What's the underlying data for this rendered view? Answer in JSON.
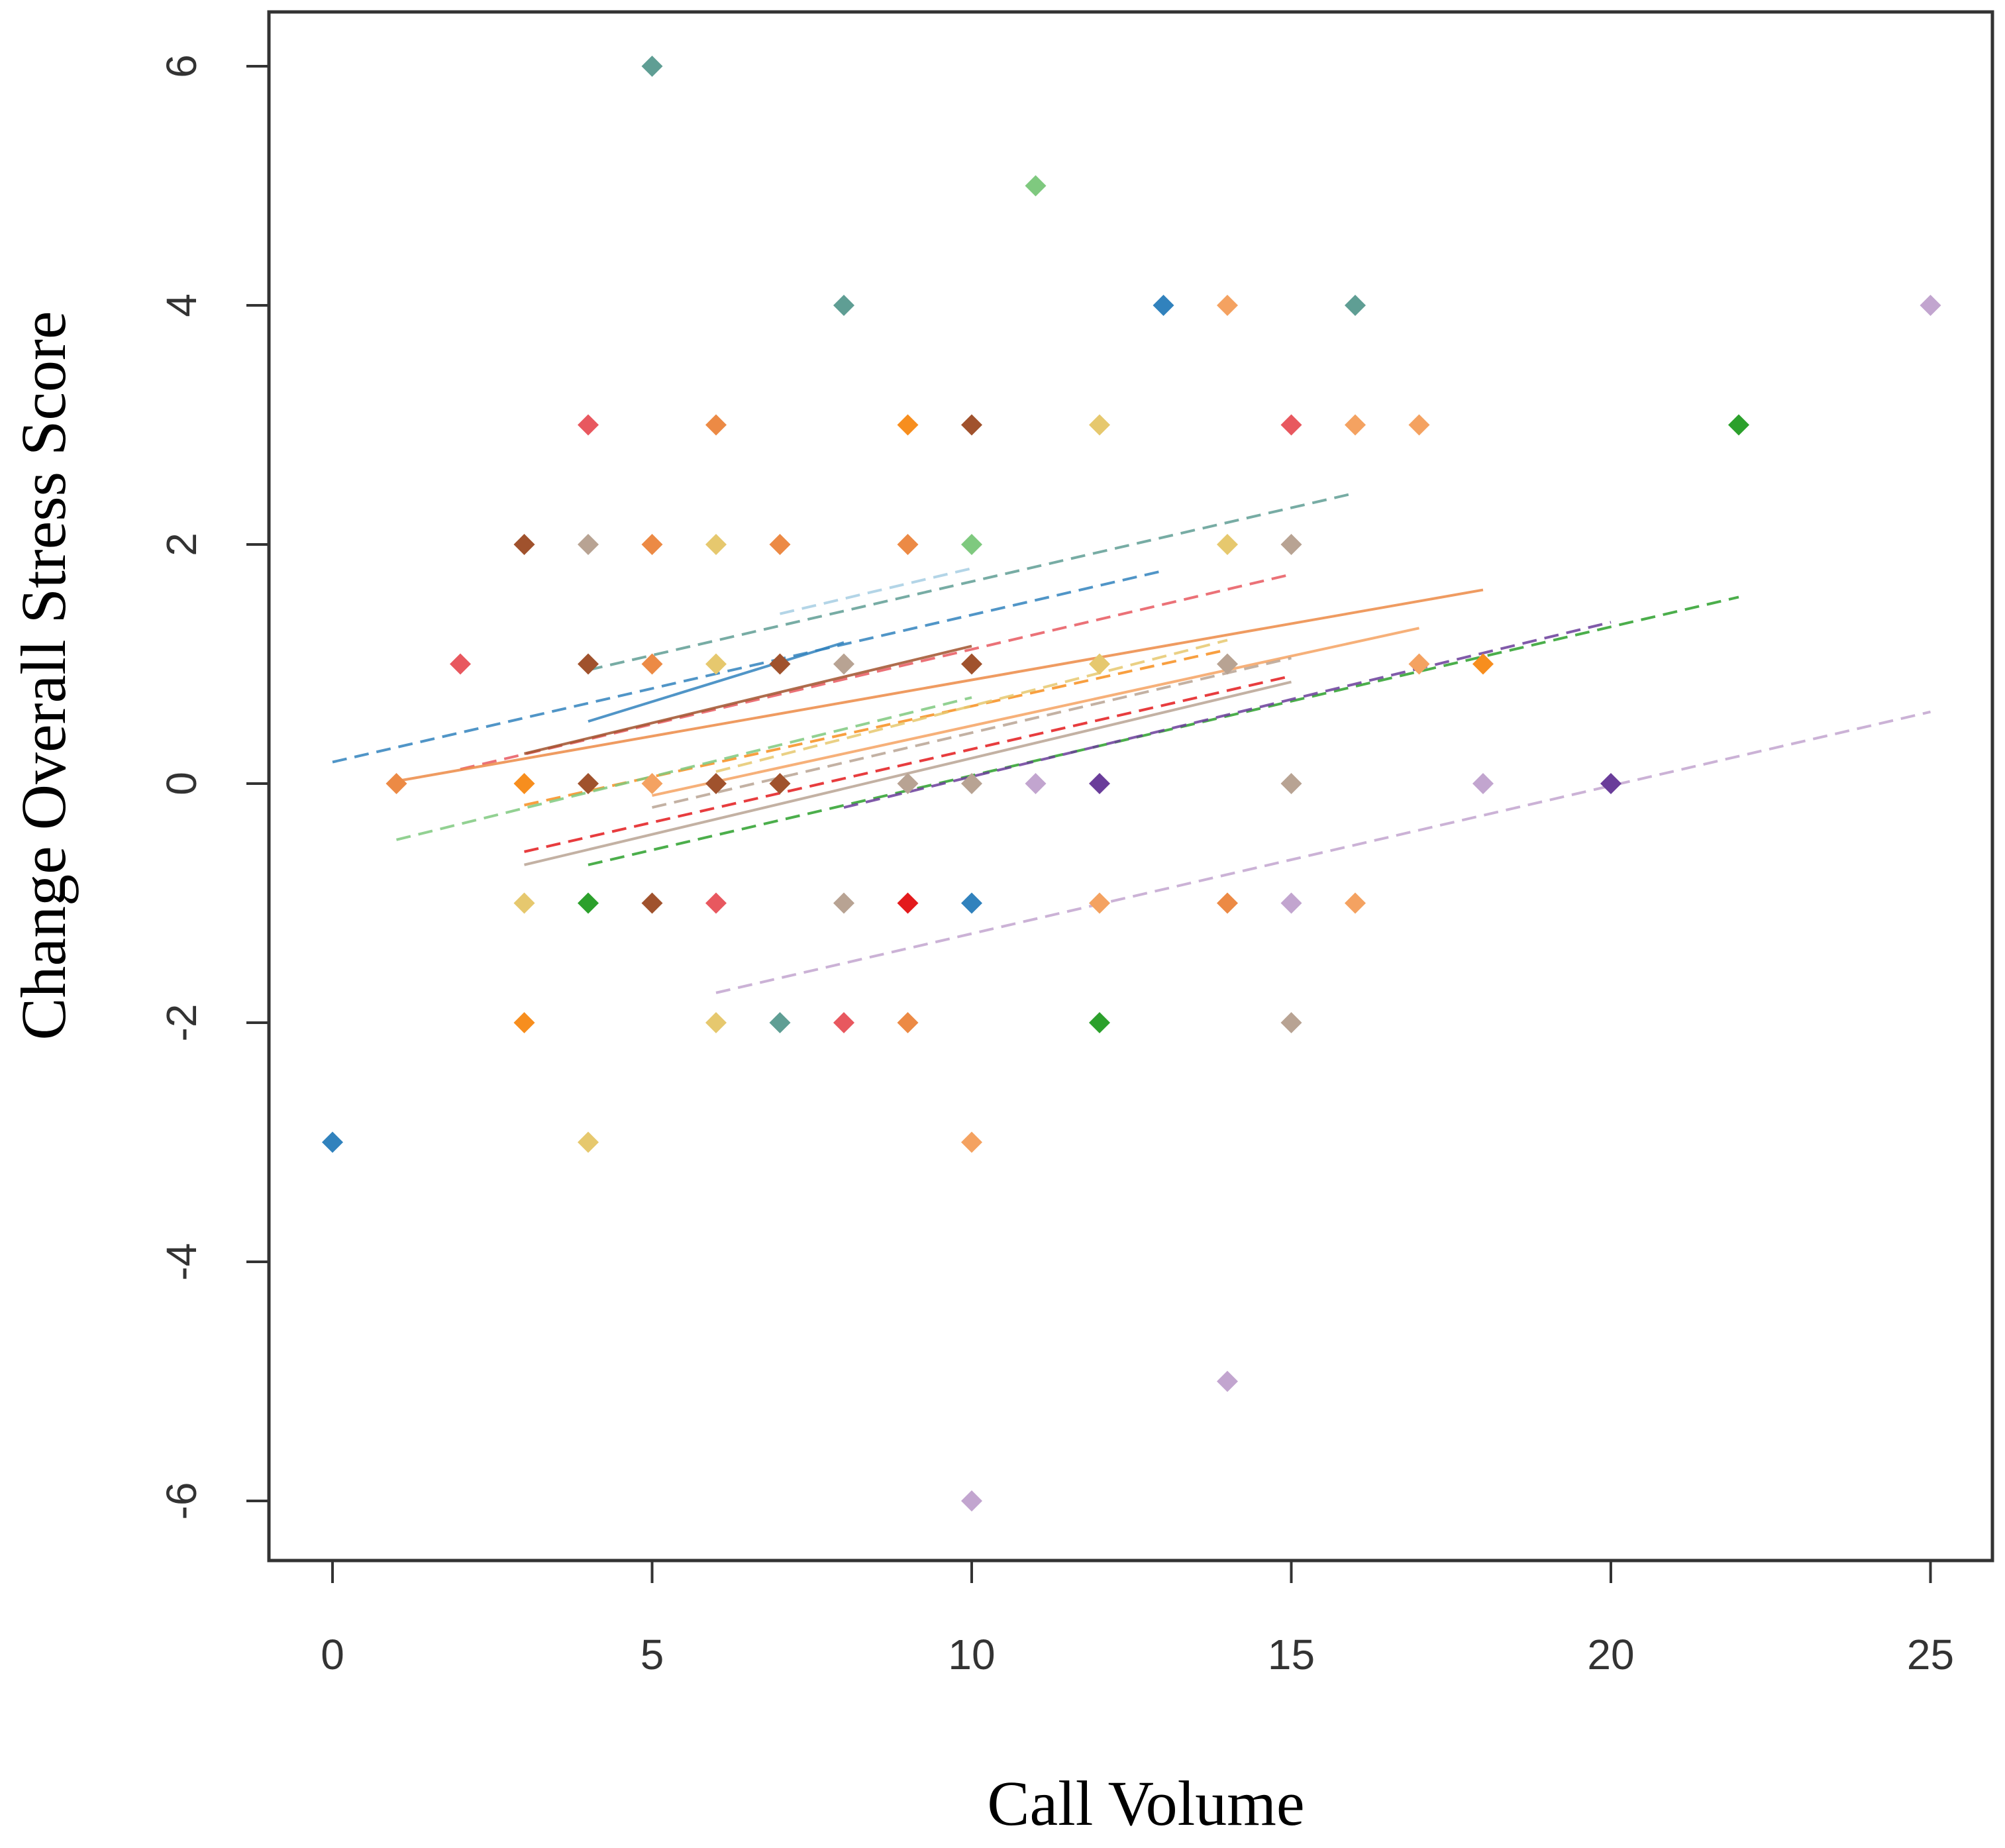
{
  "chart_data": {
    "type": "scatter",
    "title": "",
    "xlabel": "Call Volume",
    "ylabel": "Change Overall Stress Score",
    "xlim": [
      -1,
      26
    ],
    "ylim": [
      -6.5,
      6.5
    ],
    "xticks": [
      0,
      5,
      10,
      15,
      20,
      25
    ],
    "yticks": [
      -6,
      -4,
      -2,
      0,
      2,
      4,
      6
    ],
    "xtick_labels": [
      "0",
      "5",
      "10",
      "15",
      "20",
      "25"
    ],
    "ytick_labels": [
      "-6",
      "-4",
      "-2",
      "0",
      "2",
      "4",
      "6"
    ],
    "grid": false,
    "legend": "none",
    "points": [
      {
        "x": 5,
        "y": 6,
        "color": "#5f9e94"
      },
      {
        "x": 11,
        "y": 5,
        "color": "#7fc97f"
      },
      {
        "x": 8,
        "y": 4,
        "color": "#5f9e94"
      },
      {
        "x": 13,
        "y": 4,
        "color": "#3182bd"
      },
      {
        "x": 14,
        "y": 4,
        "color": "#f4a261"
      },
      {
        "x": 16,
        "y": 4,
        "color": "#5f9e94"
      },
      {
        "x": 25,
        "y": 4,
        "color": "#c2a5cf"
      },
      {
        "x": 4,
        "y": 3,
        "color": "#e8585f"
      },
      {
        "x": 6,
        "y": 3,
        "color": "#ec8a45"
      },
      {
        "x": 9,
        "y": 3,
        "color": "#f78e1e"
      },
      {
        "x": 10,
        "y": 3,
        "color": "#a0522d"
      },
      {
        "x": 12,
        "y": 3,
        "color": "#e6c86e"
      },
      {
        "x": 15,
        "y": 3,
        "color": "#e8585f"
      },
      {
        "x": 16,
        "y": 3,
        "color": "#f4a261"
      },
      {
        "x": 17,
        "y": 3,
        "color": "#f4a261"
      },
      {
        "x": 22,
        "y": 3,
        "color": "#2ca02c"
      },
      {
        "x": 3,
        "y": 2,
        "color": "#a0522d"
      },
      {
        "x": 4,
        "y": 2,
        "color": "#b8a393"
      },
      {
        "x": 5,
        "y": 2,
        "color": "#ec8a45"
      },
      {
        "x": 6,
        "y": 2,
        "color": "#e6c86e"
      },
      {
        "x": 7,
        "y": 2,
        "color": "#ec8a45"
      },
      {
        "x": 9,
        "y": 2,
        "color": "#ec8a45"
      },
      {
        "x": 10,
        "y": 2,
        "color": "#7fc97f"
      },
      {
        "x": 14,
        "y": 2,
        "color": "#e6c86e"
      },
      {
        "x": 15,
        "y": 2,
        "color": "#b8a393"
      },
      {
        "x": 2,
        "y": 1,
        "color": "#e8585f"
      },
      {
        "x": 4,
        "y": 1,
        "color": "#a0522d"
      },
      {
        "x": 5,
        "y": 1,
        "color": "#ec8a45"
      },
      {
        "x": 6,
        "y": 1,
        "color": "#e6c86e"
      },
      {
        "x": 7,
        "y": 1,
        "color": "#a0522d"
      },
      {
        "x": 8,
        "y": 1,
        "color": "#b8a393"
      },
      {
        "x": 10,
        "y": 1,
        "color": "#a0522d"
      },
      {
        "x": 12,
        "y": 1,
        "color": "#e6c86e"
      },
      {
        "x": 14,
        "y": 1,
        "color": "#b8a393"
      },
      {
        "x": 17,
        "y": 1,
        "color": "#f4a261"
      },
      {
        "x": 18,
        "y": 1,
        "color": "#f78e1e"
      },
      {
        "x": 1,
        "y": 0,
        "color": "#ec8a45"
      },
      {
        "x": 3,
        "y": 0,
        "color": "#f78e1e"
      },
      {
        "x": 4,
        "y": 0,
        "color": "#a0522d"
      },
      {
        "x": 5,
        "y": 0,
        "color": "#f4a261"
      },
      {
        "x": 6,
        "y": 0,
        "color": "#a0522d"
      },
      {
        "x": 7,
        "y": 0,
        "color": "#a0522d"
      },
      {
        "x": 9,
        "y": 0,
        "color": "#b8a393"
      },
      {
        "x": 10,
        "y": 0,
        "color": "#b8a393"
      },
      {
        "x": 11,
        "y": 0,
        "color": "#c2a5cf"
      },
      {
        "x": 12,
        "y": 0,
        "color": "#6a3d9a"
      },
      {
        "x": 15,
        "y": 0,
        "color": "#b8a393"
      },
      {
        "x": 18,
        "y": 0,
        "color": "#c2a5cf"
      },
      {
        "x": 20,
        "y": 0,
        "color": "#6a3d9a"
      },
      {
        "x": 3,
        "y": -1,
        "color": "#e6c86e"
      },
      {
        "x": 4,
        "y": -1,
        "color": "#2ca02c"
      },
      {
        "x": 5,
        "y": -1,
        "color": "#a0522d"
      },
      {
        "x": 6,
        "y": -1,
        "color": "#e8585f"
      },
      {
        "x": 8,
        "y": -1,
        "color": "#b8a393"
      },
      {
        "x": 9,
        "y": -1,
        "color": "#e31a1c"
      },
      {
        "x": 10,
        "y": -1,
        "color": "#3182bd"
      },
      {
        "x": 12,
        "y": -1,
        "color": "#f4a261"
      },
      {
        "x": 14,
        "y": -1,
        "color": "#ec8a45"
      },
      {
        "x": 15,
        "y": -1,
        "color": "#c2a5cf"
      },
      {
        "x": 16,
        "y": -1,
        "color": "#f4a261"
      },
      {
        "x": 3,
        "y": -2,
        "color": "#f78e1e"
      },
      {
        "x": 6,
        "y": -2,
        "color": "#e6c86e"
      },
      {
        "x": 7,
        "y": -2,
        "color": "#5f9e94"
      },
      {
        "x": 8,
        "y": -2,
        "color": "#e8585f"
      },
      {
        "x": 9,
        "y": -2,
        "color": "#ec8a45"
      },
      {
        "x": 12,
        "y": -2,
        "color": "#2ca02c"
      },
      {
        "x": 15,
        "y": -2,
        "color": "#b8a393"
      },
      {
        "x": 0,
        "y": -3,
        "color": "#3182bd"
      },
      {
        "x": 4,
        "y": -3,
        "color": "#e6c86e"
      },
      {
        "x": 10,
        "y": -3,
        "color": "#f4a261"
      },
      {
        "x": 14,
        "y": -5,
        "color": "#c2a5cf"
      },
      {
        "x": 10,
        "y": -6,
        "color": "#c2a5cf"
      }
    ],
    "fit_lines": [
      {
        "x1": 0,
        "y1": 0.18,
        "x2": 13,
        "y2": 1.78,
        "color": "#3182bd",
        "dashed": true
      },
      {
        "x1": 4,
        "y1": 0.95,
        "x2": 16,
        "y2": 2.43,
        "color": "#5f9e94",
        "dashed": true
      },
      {
        "x1": 7,
        "y1": 1.42,
        "x2": 10,
        "y2": 1.8,
        "color": "#a6cee3",
        "dashed": true
      },
      {
        "x1": 4,
        "y1": 0.52,
        "x2": 8,
        "y2": 1.18,
        "color": "#3182bd",
        "dashed": false
      },
      {
        "x1": 2,
        "y1": 0.12,
        "x2": 15,
        "y2": 1.75,
        "color": "#e8585f",
        "dashed": true
      },
      {
        "x1": 3,
        "y1": 0.25,
        "x2": 10,
        "y2": 1.15,
        "color": "#a0522d",
        "dashed": false
      },
      {
        "x1": 1,
        "y1": 0.02,
        "x2": 18,
        "y2": 1.62,
        "color": "#ec8a45",
        "dashed": false
      },
      {
        "x1": 3,
        "y1": -0.18,
        "x2": 14,
        "y2": 1.12,
        "color": "#f78e1e",
        "dashed": true
      },
      {
        "x1": 6,
        "y1": 0.1,
        "x2": 14,
        "y2": 1.2,
        "color": "#e6c86e",
        "dashed": true
      },
      {
        "x1": 1,
        "y1": -0.47,
        "x2": 10,
        "y2": 0.72,
        "color": "#7fc97f",
        "dashed": true
      },
      {
        "x1": 5,
        "y1": -0.1,
        "x2": 17,
        "y2": 1.3,
        "color": "#f4a261",
        "dashed": false
      },
      {
        "x1": 5,
        "y1": -0.2,
        "x2": 15,
        "y2": 1.05,
        "color": "#b8a393",
        "dashed": true
      },
      {
        "x1": 3,
        "y1": -0.57,
        "x2": 15,
        "y2": 0.9,
        "color": "#e31a1c",
        "dashed": true
      },
      {
        "x1": 3,
        "y1": -0.68,
        "x2": 15,
        "y2": 0.85,
        "color": "#b8a393",
        "dashed": false
      },
      {
        "x1": 4,
        "y1": -0.68,
        "x2": 22,
        "y2": 1.56,
        "color": "#2ca02c",
        "dashed": true
      },
      {
        "x1": 8,
        "y1": -0.2,
        "x2": 20,
        "y2": 1.35,
        "color": "#6a3d9a",
        "dashed": true
      },
      {
        "x1": 6,
        "y1": -1.75,
        "x2": 25,
        "y2": 0.6,
        "color": "#c2a5cf",
        "dashed": true
      }
    ]
  }
}
